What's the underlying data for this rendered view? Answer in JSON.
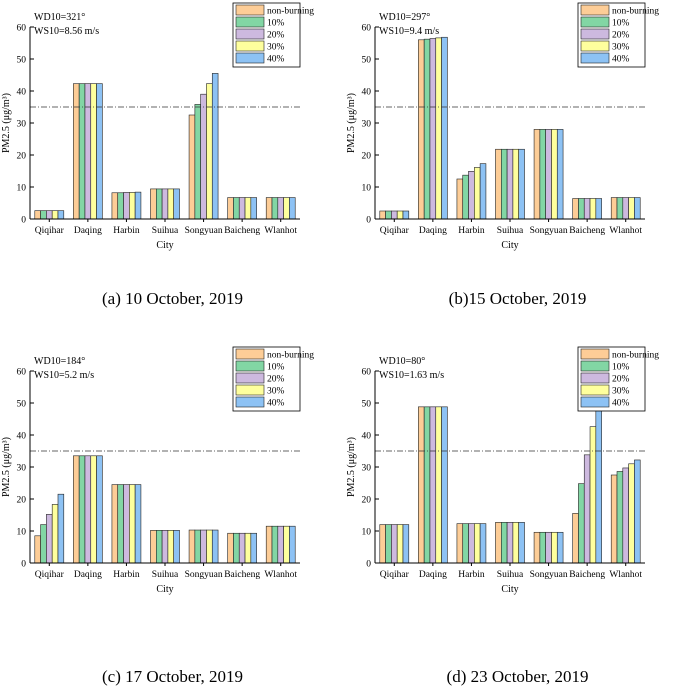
{
  "colors": {
    "non_burning": "#fdcd97",
    "p10": "#82d6a4",
    "p20": "#cdb9df",
    "p30": "#feff9d",
    "p40": "#8dc2f4",
    "threshold_line": "#333333"
  },
  "chart_data": [
    {
      "type": "bar",
      "caption": "(a)  10 October, 2019",
      "annotation": [
        "WD10=321°",
        "WS10=8.56 m/s"
      ],
      "xlabel": "City",
      "ylabel": "PM2.5 (μg/m³)",
      "ylim": [
        0,
        60
      ],
      "yticks": [
        0,
        10,
        20,
        30,
        40,
        50,
        60
      ],
      "reference_line": 35,
      "legend_position": "top-right",
      "categories": [
        "Qiqihar",
        "Daqing",
        "Harbin",
        "Suihua",
        "Songyuan",
        "Baicheng",
        "Wlanhot"
      ],
      "series": [
        {
          "name": "non-burning",
          "values": [
            2.6,
            42.3,
            8.2,
            9.4,
            32.5,
            6.7,
            6.7
          ]
        },
        {
          "name": "10%",
          "values": [
            2.6,
            42.3,
            8.2,
            9.4,
            35.8,
            6.7,
            6.7
          ]
        },
        {
          "name": "20%",
          "values": [
            2.6,
            42.3,
            8.3,
            9.4,
            39.0,
            6.7,
            6.7
          ]
        },
        {
          "name": "30%",
          "values": [
            2.6,
            42.3,
            8.3,
            9.4,
            42.3,
            6.7,
            6.7
          ]
        },
        {
          "name": "40%",
          "values": [
            2.6,
            42.3,
            8.4,
            9.4,
            45.5,
            6.7,
            6.7
          ]
        }
      ]
    },
    {
      "type": "bar",
      "caption": "(b)15 October, 2019",
      "annotation": [
        "WD10=297°",
        "WS10=9.4 m/s"
      ],
      "xlabel": "City",
      "ylabel": "PM2.5 (μg/m³)",
      "ylim": [
        0,
        60
      ],
      "yticks": [
        0,
        10,
        20,
        30,
        40,
        50,
        60
      ],
      "reference_line": 35,
      "legend_position": "top-right",
      "categories": [
        "Qiqihar",
        "Daqing",
        "Harbin",
        "Suihua",
        "Songyuan",
        "Baicheng",
        "Wlanhot"
      ],
      "series": [
        {
          "name": "non-burning",
          "values": [
            2.5,
            56.0,
            12.5,
            21.8,
            28.0,
            6.4,
            6.7
          ]
        },
        {
          "name": "10%",
          "values": [
            2.5,
            56.2,
            13.7,
            21.8,
            28.0,
            6.4,
            6.7
          ]
        },
        {
          "name": "20%",
          "values": [
            2.5,
            56.4,
            14.9,
            21.8,
            28.0,
            6.4,
            6.7
          ]
        },
        {
          "name": "30%",
          "values": [
            2.5,
            56.6,
            16.1,
            21.8,
            28.0,
            6.4,
            6.7
          ]
        },
        {
          "name": "40%",
          "values": [
            2.5,
            56.8,
            17.3,
            21.8,
            28.0,
            6.4,
            6.7
          ]
        }
      ]
    },
    {
      "type": "bar",
      "caption": "(c) 17 October, 2019",
      "annotation": [
        "WD10=184°",
        "WS10=5.2 m/s"
      ],
      "xlabel": "City",
      "ylabel": "PM2.5 (μg/m³)",
      "ylim": [
        0,
        60
      ],
      "yticks": [
        0,
        10,
        20,
        30,
        40,
        50,
        60
      ],
      "reference_line": 35,
      "legend_position": "top-right",
      "categories": [
        "Qiqihar",
        "Daqing",
        "Harbin",
        "Suihua",
        "Songyuan",
        "Baicheng",
        "Wlanhot"
      ],
      "series": [
        {
          "name": "non-burning",
          "values": [
            8.5,
            33.5,
            24.5,
            10.2,
            10.3,
            9.3,
            11.5
          ]
        },
        {
          "name": "10%",
          "values": [
            12.0,
            33.5,
            24.5,
            10.2,
            10.3,
            9.3,
            11.5
          ]
        },
        {
          "name": "20%",
          "values": [
            15.2,
            33.5,
            24.5,
            10.2,
            10.3,
            9.3,
            11.5
          ]
        },
        {
          "name": "30%",
          "values": [
            18.3,
            33.5,
            24.5,
            10.2,
            10.3,
            9.3,
            11.5
          ]
        },
        {
          "name": "40%",
          "values": [
            21.5,
            33.5,
            24.5,
            10.2,
            10.3,
            9.3,
            11.5
          ]
        }
      ]
    },
    {
      "type": "bar",
      "caption": "(d) 23 October, 2019",
      "annotation": [
        "WD10=80°",
        "WS10=1.63 m/s"
      ],
      "xlabel": "City",
      "ylabel": "PM2.5 (μg/m³)",
      "ylim": [
        0,
        60
      ],
      "yticks": [
        0,
        10,
        20,
        30,
        40,
        50,
        60
      ],
      "reference_line": 35,
      "legend_position": "top-right",
      "categories": [
        "Qiqihar",
        "Daqing",
        "Harbin",
        "Suihua",
        "Songyuan",
        "Baicheng",
        "Wlanhot"
      ],
      "series": [
        {
          "name": "non-burning",
          "values": [
            12.0,
            48.8,
            12.3,
            12.7,
            9.6,
            15.5,
            27.5
          ]
        },
        {
          "name": "10%",
          "values": [
            12.0,
            48.8,
            12.3,
            12.7,
            9.6,
            24.8,
            28.6
          ]
        },
        {
          "name": "20%",
          "values": [
            12.0,
            48.8,
            12.3,
            12.7,
            9.6,
            33.8,
            29.7
          ]
        },
        {
          "name": "30%",
          "values": [
            12.0,
            48.8,
            12.3,
            12.7,
            9.6,
            42.6,
            31.0
          ]
        },
        {
          "name": "40%",
          "values": [
            12.0,
            48.8,
            12.3,
            12.7,
            9.6,
            51.6,
            32.2
          ]
        }
      ]
    }
  ]
}
